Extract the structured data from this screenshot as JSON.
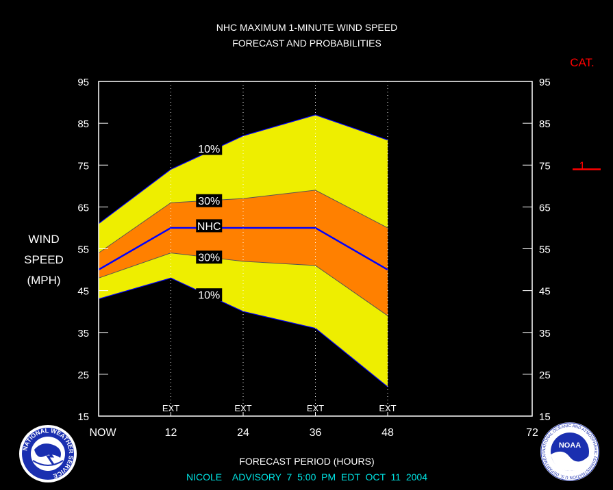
{
  "title_line1": "NHC MAXIMUM 1-MINUTE WIND SPEED",
  "title_line2": "FORECAST AND PROBABILITIES",
  "cat_label": "CAT.",
  "y_axis_label": [
    "WIND",
    "SPEED",
    "(MPH)"
  ],
  "x_axis_label": "FORECAST PERIOD (HOURS)",
  "advisory": "NICOLE    ADVISORY  7  5:00  PM  EDT  OCT  11  2004",
  "left_logo_text": "NATIONAL WEATHER SERVICE",
  "right_logo_text": "NOAA",
  "right_logo_ring_text": "NATIONAL OCEANIC AND ATMOSPHERIC ADMINISTRATION U.S. DEPARTMENT OF COMMERCE",
  "colors": {
    "background": "#000000",
    "frame": "#ffffff",
    "band_10": "#eeee00",
    "band_30": "#ff8000",
    "nhc_line": "#0000ff",
    "cat_color": "#ff0000",
    "advisory_color": "#00e5e5"
  },
  "chart_data": {
    "type": "area",
    "x": [
      0,
      12,
      24,
      36,
      48
    ],
    "x_ticks": [
      0,
      12,
      24,
      36,
      48,
      72
    ],
    "x_tick_labels": [
      "NOW",
      "12",
      "24",
      "36",
      "48",
      "72"
    ],
    "ext_marks": [
      12,
      24,
      36,
      48
    ],
    "ext_label": "EXT",
    "xlim": [
      0,
      72
    ],
    "ylim": [
      15,
      95
    ],
    "y_ticks": [
      15,
      25,
      35,
      45,
      55,
      65,
      75,
      85,
      95
    ],
    "grid": "dotted vertical at 12, 24, 36, 48",
    "series": {
      "upper_10": [
        61,
        74,
        82,
        87,
        81
      ],
      "upper_30": [
        54,
        66,
        67,
        69,
        60
      ],
      "nhc": [
        50,
        60,
        60,
        60,
        50
      ],
      "lower_30": [
        48,
        54,
        52,
        51,
        39
      ],
      "lower_10": [
        43,
        48,
        40,
        36,
        22
      ]
    },
    "band_labels": [
      {
        "text": "10%",
        "x": 18,
        "y": 79
      },
      {
        "text": "30%",
        "x": 18,
        "y": 66.5
      },
      {
        "text": "NHC",
        "x": 18,
        "y": 60.5
      },
      {
        "text": "30%",
        "x": 18,
        "y": 53
      },
      {
        "text": "10%",
        "x": 18,
        "y": 44
      }
    ],
    "category": {
      "label": "1",
      "value": 75,
      "threshold_value": 74
    }
  }
}
